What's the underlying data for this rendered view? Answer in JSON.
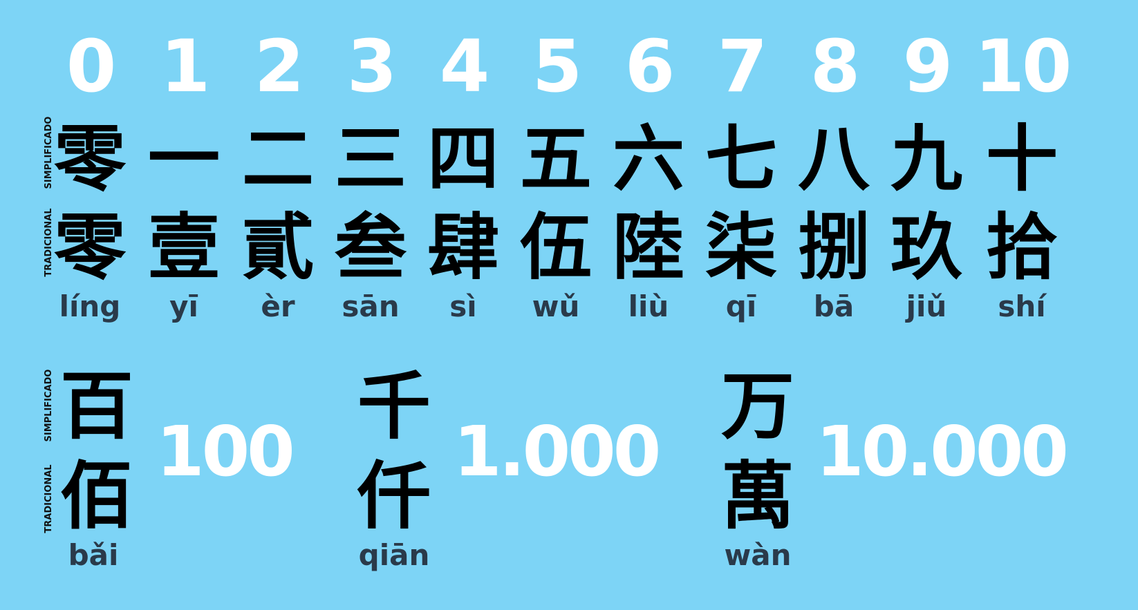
{
  "labels": {
    "simplified": "SIMPLIFICADO",
    "traditional": "TRADICIONAL"
  },
  "numbers": [
    {
      "digit": "0",
      "simplified": "零",
      "traditional": "零",
      "pinyin": "líng"
    },
    {
      "digit": "1",
      "simplified": "一",
      "traditional": "壹",
      "pinyin": "yī"
    },
    {
      "digit": "2",
      "simplified": "二",
      "traditional": "貳",
      "pinyin": "èr"
    },
    {
      "digit": "3",
      "simplified": "三",
      "traditional": "叁",
      "pinyin": "sān"
    },
    {
      "digit": "4",
      "simplified": "四",
      "traditional": "肆",
      "pinyin": "sì"
    },
    {
      "digit": "5",
      "simplified": "五",
      "traditional": "伍",
      "pinyin": "wǔ"
    },
    {
      "digit": "6",
      "simplified": "六",
      "traditional": "陸",
      "pinyin": "liù"
    },
    {
      "digit": "7",
      "simplified": "七",
      "traditional": "柒",
      "pinyin": "qī"
    },
    {
      "digit": "8",
      "simplified": "八",
      "traditional": "捌",
      "pinyin": "bā"
    },
    {
      "digit": "9",
      "simplified": "九",
      "traditional": "玖",
      "pinyin": "jiǔ"
    },
    {
      "digit": "10",
      "simplified": "十",
      "traditional": "拾",
      "pinyin": "shí"
    }
  ],
  "large_numbers": [
    {
      "simplified": "百",
      "traditional": "佰",
      "pinyin": "bǎi",
      "value": "100"
    },
    {
      "simplified": "千",
      "traditional": "仟",
      "pinyin": "qiān",
      "value": "1.000"
    },
    {
      "simplified": "万",
      "traditional": "萬",
      "pinyin": "wàn",
      "value": "10.000"
    }
  ],
  "colors": {
    "background": "#7dd4f6",
    "digit": "#ffffff",
    "character": "#000000",
    "pinyin": "#2a3a4a"
  }
}
